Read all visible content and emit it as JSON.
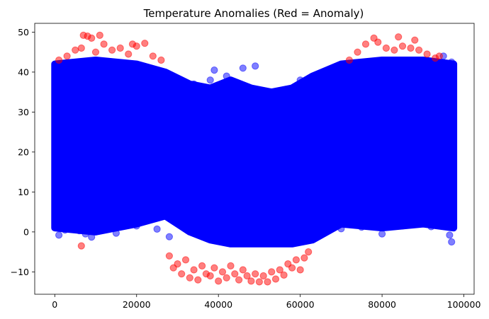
{
  "chart_data": {
    "type": "scatter",
    "title": "Temperature Anomalies (Red = Anomaly)",
    "xlabel": "",
    "ylabel": "",
    "xlim": [
      -4900,
      102500
    ],
    "ylim": [
      -15.6,
      52.2
    ],
    "x_ticks": [
      0,
      20000,
      40000,
      60000,
      80000,
      100000
    ],
    "x_tick_labels": [
      "0",
      "20000",
      "40000",
      "60000",
      "80000",
      "100000"
    ],
    "y_ticks": [
      -10,
      0,
      10,
      20,
      30,
      40,
      50
    ],
    "y_tick_labels": [
      "−10",
      "0",
      "10",
      "20",
      "30",
      "40",
      "50"
    ],
    "grid": false,
    "legend": "none",
    "x_range": [
      0,
      97500
    ],
    "normal_band": {
      "description_values": "upper/lower envelope of non-anomalous readings at sampled x",
      "x": [
        0,
        10000,
        20000,
        27000,
        33000,
        38000,
        43000,
        48000,
        53000,
        58000,
        63000,
        70000,
        80000,
        90000,
        97500
      ],
      "upper": [
        42,
        43,
        42,
        40,
        37,
        36,
        38,
        36,
        35,
        36,
        39,
        42,
        43,
        43,
        42
      ],
      "lower": [
        1,
        0,
        2,
        4,
        0,
        -2,
        -3,
        -3,
        -3,
        -3,
        -2,
        2,
        1,
        2,
        1
      ]
    },
    "series": [
      {
        "color": "#0000ff",
        "points": [
          [
            500,
            1
          ],
          [
            1000,
            -0.8
          ],
          [
            2500,
            0.5
          ],
          [
            6000,
            0.3
          ],
          [
            7500,
            -0.5
          ],
          [
            9000,
            -1.3
          ],
          [
            15000,
            -0.3
          ],
          [
            20000,
            1.5
          ],
          [
            25000,
            0.7
          ],
          [
            28000,
            -1.2
          ],
          [
            65000,
            -0.3
          ],
          [
            70000,
            0.8
          ],
          [
            75000,
            1.2
          ],
          [
            80000,
            -0.5
          ],
          [
            85000,
            1.5
          ],
          [
            92000,
            1.3
          ],
          [
            96500,
            -0.8
          ],
          [
            97000,
            -2.5
          ],
          [
            90000,
            5.5
          ],
          [
            10000,
            6
          ],
          [
            38000,
            38
          ],
          [
            39000,
            40.5
          ],
          [
            42000,
            39
          ],
          [
            46000,
            41
          ],
          [
            49000,
            41.5
          ],
          [
            97000,
            42.5
          ],
          [
            500,
            38.5
          ],
          [
            1500,
            40
          ],
          [
            30000,
            38
          ],
          [
            34000,
            37
          ],
          [
            60000,
            38
          ],
          [
            95000,
            44
          ]
        ]
      },
      {
        "color": "#ff0000",
        "points": [
          [
            1000,
            43
          ],
          [
            3000,
            44
          ],
          [
            5000,
            45.5
          ],
          [
            6500,
            46
          ],
          [
            7000,
            49.2
          ],
          [
            8000,
            49
          ],
          [
            9000,
            48.5
          ],
          [
            10000,
            45
          ],
          [
            11000,
            49.2
          ],
          [
            12000,
            47
          ],
          [
            14000,
            45.5
          ],
          [
            16000,
            46
          ],
          [
            18000,
            44.5
          ],
          [
            19000,
            47
          ],
          [
            20000,
            46.5
          ],
          [
            22000,
            47.2
          ],
          [
            24000,
            44
          ],
          [
            26000,
            43
          ],
          [
            6500,
            -3.5
          ],
          [
            72000,
            43
          ],
          [
            74000,
            45
          ],
          [
            76000,
            47
          ],
          [
            78000,
            48.5
          ],
          [
            79000,
            47.5
          ],
          [
            81000,
            46
          ],
          [
            83000,
            45.5
          ],
          [
            84000,
            48.8
          ],
          [
            85000,
            46.5
          ],
          [
            87000,
            46
          ],
          [
            88000,
            48
          ],
          [
            89000,
            45.5
          ],
          [
            91000,
            44.5
          ],
          [
            93000,
            43.5
          ],
          [
            94000,
            44
          ],
          [
            28000,
            -6
          ],
          [
            29000,
            -9
          ],
          [
            30000,
            -8
          ],
          [
            31000,
            -10.5
          ],
          [
            32000,
            -7
          ],
          [
            33000,
            -11.5
          ],
          [
            34000,
            -9.5
          ],
          [
            35000,
            -12
          ],
          [
            36000,
            -8.5
          ],
          [
            37000,
            -10.5
          ],
          [
            38000,
            -11
          ],
          [
            39000,
            -9
          ],
          [
            40000,
            -12.3
          ],
          [
            41000,
            -10
          ],
          [
            42000,
            -11.5
          ],
          [
            43000,
            -8.5
          ],
          [
            44000,
            -10.5
          ],
          [
            45000,
            -12
          ],
          [
            46000,
            -9.5
          ],
          [
            47000,
            -11
          ],
          [
            48000,
            -12.3
          ],
          [
            49000,
            -10.5
          ],
          [
            50000,
            -12.5
          ],
          [
            51000,
            -11
          ],
          [
            52000,
            -12.5
          ],
          [
            53000,
            -10
          ],
          [
            54000,
            -11.8
          ],
          [
            55000,
            -9.5
          ],
          [
            56000,
            -10.8
          ],
          [
            57000,
            -8
          ],
          [
            58000,
            -9
          ],
          [
            59000,
            -7
          ],
          [
            60000,
            -9.5
          ],
          [
            61000,
            -6.5
          ],
          [
            62000,
            -5
          ]
        ]
      }
    ]
  }
}
